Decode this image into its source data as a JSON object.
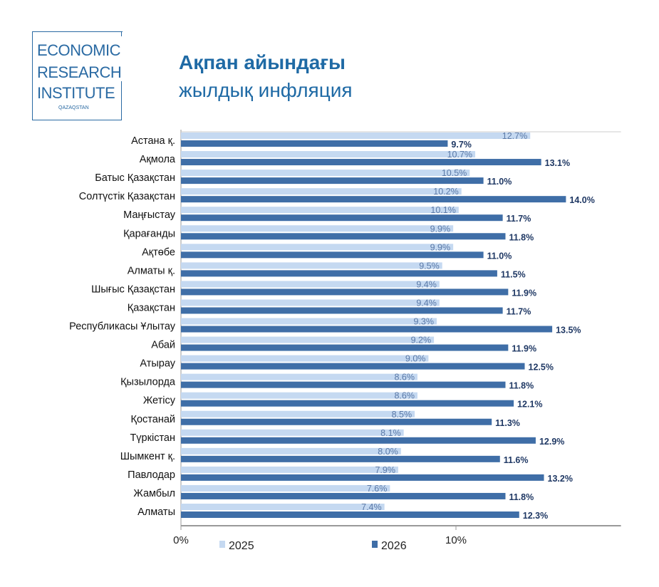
{
  "logo": {
    "lines": [
      "ECONOMIC",
      "RESEARCH",
      "INSTITUTE"
    ],
    "sub": "QAZAQSTAN"
  },
  "title": {
    "line1": "Ақпан айындағы",
    "line2": "жылдық инфляция"
  },
  "chart_data": {
    "type": "bar",
    "orientation": "horizontal",
    "title": "Ақпан айындағы жылдық инфляция",
    "categories": [
      "Астана қ.",
      "Ақмола",
      "Батыс Қазақстан",
      "Солтүстік Қазақстан",
      "Маңғыстау",
      "Қарағанды",
      "Ақтөбе",
      "Алматы қ.",
      "Шығыс Қазақстан",
      "Қазақстан",
      "Республикасы Ұлытау",
      "Абай",
      "Атырау",
      "Қызылорда",
      "Жетісу",
      "Қостанай",
      "Түркістан",
      "Шымкент қ.",
      "Павлодар",
      "Жамбыл",
      "Алматы"
    ],
    "series": [
      {
        "name": "2025",
        "color": "#c5d9f1",
        "values": [
          12.7,
          10.7,
          10.5,
          10.2,
          10.1,
          9.9,
          9.9,
          9.5,
          9.4,
          9.4,
          9.3,
          9.2,
          9.0,
          8.6,
          8.6,
          8.5,
          8.1,
          8.0,
          7.9,
          7.6,
          7.4
        ]
      },
      {
        "name": "2026",
        "color": "#3f6ea7",
        "values": [
          9.7,
          13.1,
          11.0,
          14.0,
          11.7,
          11.8,
          11.0,
          11.5,
          11.9,
          11.7,
          13.5,
          11.9,
          12.5,
          11.8,
          12.1,
          11.3,
          12.9,
          11.6,
          13.2,
          11.8,
          12.3
        ]
      }
    ],
    "xlim": [
      0,
      16
    ],
    "xticks": [
      "0%",
      "10%"
    ],
    "xtick_values": [
      0,
      10
    ],
    "legend": "bottom"
  }
}
